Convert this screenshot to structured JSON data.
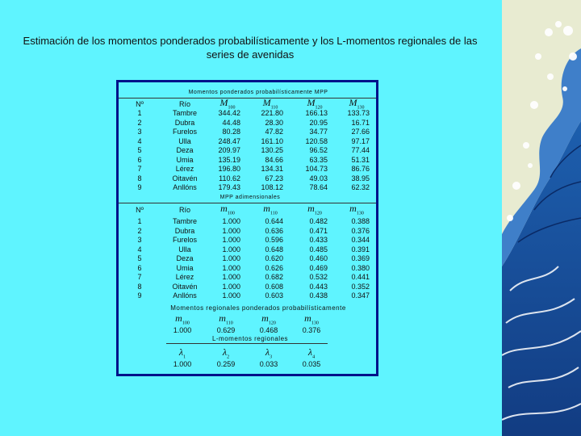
{
  "title": "Estimación de los momentos ponderados probabilísticamente y los L-momentos regionales de las series de avenidas",
  "sections": {
    "mpp": "Momentos ponderados probabilísticamente MPP",
    "mpp_adim": "MPP adimensionales",
    "mpp_regional": "Momentos regionales ponderados probabilísticamente",
    "lmom": "L-momentos regionales"
  },
  "headers": {
    "no": "Nº",
    "rio": "Río",
    "M": [
      "M100",
      "M110",
      "M120",
      "M130"
    ],
    "m": [
      "m100",
      "m110",
      "m120",
      "m130"
    ],
    "lambda": [
      "λ1",
      "λ2",
      "λ3",
      "λ4"
    ]
  },
  "rivers": [
    "Tambre",
    "Dubra",
    "Furelos",
    "Ulla",
    "Deza",
    "Umia",
    "Lérez",
    "Oitavén",
    "Anllóns"
  ],
  "numbers": [
    "1",
    "2",
    "3",
    "4",
    "5",
    "6",
    "7",
    "8",
    "9"
  ],
  "table1": [
    [
      "344.42",
      "221.80",
      "166.13",
      "133.73"
    ],
    [
      "44.48",
      "28.30",
      "20.95",
      "16.71"
    ],
    [
      "80.28",
      "47.82",
      "34.77",
      "27.66"
    ],
    [
      "248.47",
      "161.10",
      "120.58",
      "97.17"
    ],
    [
      "209.97",
      "130.25",
      "96.52",
      "77.44"
    ],
    [
      "135.19",
      "84.66",
      "63.35",
      "51.31"
    ],
    [
      "196.80",
      "134.31",
      "104.73",
      "86.76"
    ],
    [
      "110.62",
      "67.23",
      "49.03",
      "38.95"
    ],
    [
      "179.43",
      "108.12",
      "78.64",
      "62.32"
    ]
  ],
  "table2": [
    [
      "1.000",
      "0.644",
      "0.482",
      "0.388"
    ],
    [
      "1.000",
      "0.636",
      "0.471",
      "0.376"
    ],
    [
      "1.000",
      "0.596",
      "0.433",
      "0.344"
    ],
    [
      "1.000",
      "0.648",
      "0.485",
      "0.391"
    ],
    [
      "1.000",
      "0.620",
      "0.460",
      "0.369"
    ],
    [
      "1.000",
      "0.626",
      "0.469",
      "0.380"
    ],
    [
      "1.000",
      "0.682",
      "0.532",
      "0.441"
    ],
    [
      "1.000",
      "0.608",
      "0.443",
      "0.352"
    ],
    [
      "1.000",
      "0.603",
      "0.438",
      "0.347"
    ]
  ],
  "regional": [
    "1.000",
    "0.629",
    "0.468",
    "0.376"
  ],
  "lmoments": [
    "1.000",
    "0.259",
    "0.033",
    "0.035"
  ],
  "colors": {
    "background": "#5ff4ff",
    "panel_border": "#00128a"
  }
}
